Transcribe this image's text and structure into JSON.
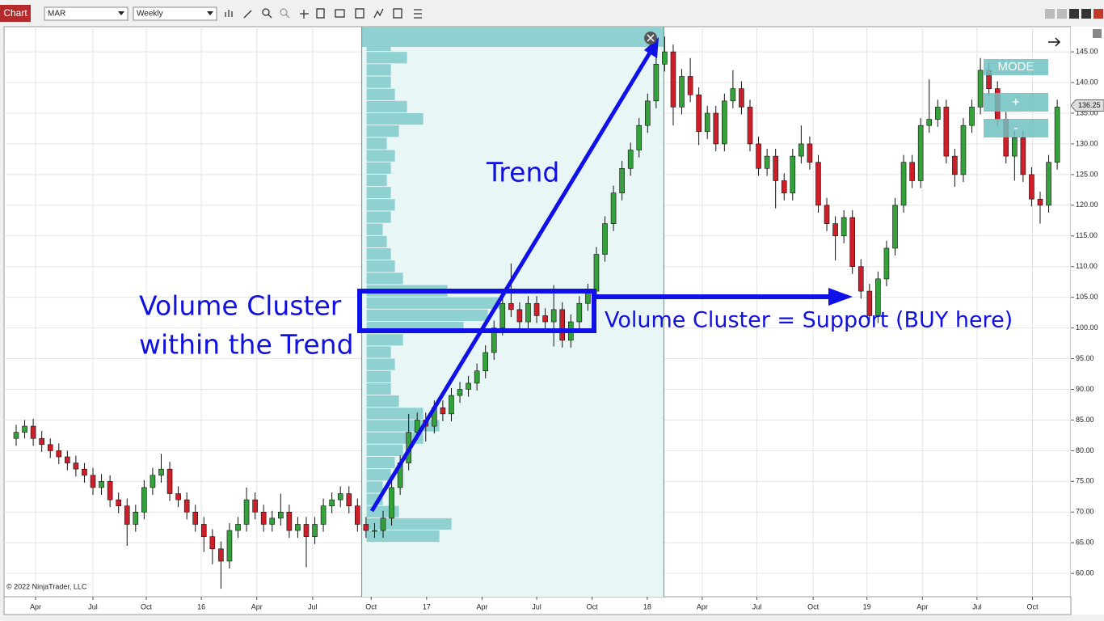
{
  "toolbar": {
    "tab": "Chart",
    "instrument": "MAR",
    "interval": "Weekly"
  },
  "mode_panel": {
    "mode": "MODE",
    "plus": "+",
    "minus": "-"
  },
  "chart_data": {
    "type": "candlestick",
    "up_color": "#34a13a",
    "down_color": "#cc1f2a",
    "xlim": [
      -1.42,
      123.6
    ],
    "xticks": [
      {
        "value": 2.27,
        "label": "Apr"
      },
      {
        "value": 9.0,
        "label": "Jul"
      },
      {
        "value": 15.25,
        "label": "Oct"
      },
      {
        "value": 21.7,
        "label": "16"
      },
      {
        "value": 28.2,
        "label": "Apr"
      },
      {
        "value": 34.75,
        "label": "Jul"
      },
      {
        "value": 41.6,
        "label": "Oct"
      },
      {
        "value": 48.1,
        "label": "17"
      },
      {
        "value": 54.6,
        "label": "Apr"
      },
      {
        "value": 61.0,
        "label": "Jul"
      },
      {
        "value": 67.5,
        "label": "Oct"
      },
      {
        "value": 73.96,
        "label": "18"
      },
      {
        "value": 80.4,
        "label": "Apr"
      },
      {
        "value": 86.8,
        "label": "Jul"
      },
      {
        "value": 93.4,
        "label": "Oct"
      },
      {
        "value": 99.7,
        "label": "19"
      },
      {
        "value": 106.2,
        "label": "Apr"
      },
      {
        "value": 112.6,
        "label": "Jul"
      },
      {
        "value": 119.1,
        "label": "Oct"
      }
    ],
    "ylim": [
      56.2,
      149.1
    ],
    "yticks": [
      {
        "value": 60,
        "label": "60.00"
      },
      {
        "value": 65,
        "label": "65.00"
      },
      {
        "value": 70,
        "label": "70.00"
      },
      {
        "value": 75,
        "label": "75.00"
      },
      {
        "value": 80,
        "label": "80.00"
      },
      {
        "value": 85,
        "label": "85.00"
      },
      {
        "value": 90,
        "label": "90.00"
      },
      {
        "value": 95,
        "label": "95.00"
      },
      {
        "value": 100,
        "label": "100.00"
      },
      {
        "value": 105,
        "label": "105.00"
      },
      {
        "value": 110,
        "label": "110.00"
      },
      {
        "value": 115,
        "label": "115.00"
      },
      {
        "value": 120,
        "label": "120.00"
      },
      {
        "value": 125,
        "label": "125.00"
      },
      {
        "value": 130,
        "label": "130.00"
      },
      {
        "value": 135,
        "label": "135.00"
      },
      {
        "value": 140,
        "label": "140.00"
      },
      {
        "value": 145,
        "label": "145.00"
      }
    ],
    "grid": true,
    "last_price": 136.25,
    "copyright": "© 2022 NinjaTrader, LLC",
    "annotations": {
      "trend": "Trend",
      "cluster": [
        "Volume Cluster",
        "within the Trend"
      ],
      "support": "Volume Cluster = Support (BUY here)"
    },
    "volume_profile": {
      "range": [
        40.5,
        75.9
      ],
      "color": "#8fd0d0",
      "price_levels": [
        66,
        68,
        70,
        72,
        74,
        76,
        78,
        80,
        82,
        84,
        86,
        88,
        90,
        92,
        94,
        96,
        98,
        100,
        102,
        104,
        106,
        108,
        110,
        112,
        114,
        116,
        118,
        120,
        122,
        124,
        126,
        128,
        130,
        132,
        134,
        136,
        138,
        140,
        142,
        144,
        146
      ],
      "values": [
        90,
        105,
        40,
        20,
        20,
        30,
        35,
        45,
        70,
        90,
        70,
        40,
        30,
        30,
        35,
        30,
        45,
        120,
        150,
        165,
        100,
        45,
        35,
        30,
        25,
        20,
        30,
        35,
        30,
        25,
        30,
        35,
        25,
        40,
        70,
        50,
        35,
        30,
        30,
        50,
        30
      ]
    },
    "ohlc": [
      [
        82,
        84.2,
        80.8,
        83
      ],
      [
        83,
        85,
        82,
        84
      ],
      [
        84,
        85.2,
        80.8,
        82
      ],
      [
        82,
        83.2,
        79.8,
        81
      ],
      [
        81,
        82,
        78.8,
        80
      ],
      [
        80,
        81.2,
        77.8,
        79
      ],
      [
        79,
        80,
        76.8,
        78
      ],
      [
        78,
        79.2,
        75.8,
        77
      ],
      [
        77,
        78,
        74.8,
        76
      ],
      [
        76,
        77.2,
        72.8,
        74
      ],
      [
        74,
        76.2,
        72.8,
        75
      ],
      [
        75,
        76,
        70.8,
        72
      ],
      [
        72,
        73.2,
        69.8,
        71
      ],
      [
        71,
        72.2,
        64.5,
        68
      ],
      [
        68,
        71.2,
        66.8,
        70
      ],
      [
        70,
        75.2,
        68.8,
        74
      ],
      [
        74,
        77.2,
        72.8,
        76
      ],
      [
        76,
        79.5,
        74.8,
        77
      ],
      [
        77,
        78.2,
        71.8,
        73
      ],
      [
        73,
        74.2,
        70.8,
        72
      ],
      [
        72,
        73.2,
        68.8,
        70
      ],
      [
        70,
        71.2,
        66.8,
        68
      ],
      [
        68,
        69.2,
        63.5,
        66
      ],
      [
        66,
        67.2,
        61.5,
        64
      ],
      [
        64,
        65.2,
        57.5,
        62
      ],
      [
        62,
        68.2,
        60.8,
        67
      ],
      [
        67,
        69.2,
        65.8,
        68
      ],
      [
        68,
        74,
        66.8,
        72
      ],
      [
        72,
        73.2,
        68.8,
        70
      ],
      [
        70,
        71.2,
        66.8,
        68
      ],
      [
        68,
        70.2,
        66.8,
        69
      ],
      [
        69,
        73,
        67.8,
        70
      ],
      [
        70,
        71.2,
        65.8,
        67
      ],
      [
        67,
        69.2,
        65.8,
        68
      ],
      [
        68,
        69.2,
        61,
        66
      ],
      [
        66,
        69.2,
        64.8,
        68
      ],
      [
        68,
        72.2,
        66.8,
        71
      ],
      [
        71,
        73.2,
        69.8,
        72
      ],
      [
        72,
        74.2,
        70.8,
        73
      ],
      [
        73,
        74.2,
        69.8,
        71
      ],
      [
        71,
        72.2,
        66.8,
        68
      ],
      [
        68,
        69.2,
        65.8,
        67
      ],
      [
        67,
        68.2,
        65.8,
        67
      ],
      [
        67,
        70.2,
        65.8,
        69
      ],
      [
        69,
        75.2,
        67.8,
        74
      ],
      [
        74,
        79.2,
        72.8,
        78
      ],
      [
        78,
        86,
        76.8,
        83
      ],
      [
        83,
        86.2,
        81.8,
        85
      ],
      [
        85,
        86.2,
        81.5,
        84
      ],
      [
        84,
        88.2,
        82.8,
        87
      ],
      [
        87,
        88.2,
        84.8,
        86
      ],
      [
        86,
        90.2,
        84.8,
        89
      ],
      [
        89,
        91.2,
        87.8,
        90
      ],
      [
        90,
        92.2,
        88.8,
        91
      ],
      [
        91,
        94.2,
        89.8,
        93
      ],
      [
        93,
        97.2,
        91.8,
        96
      ],
      [
        96,
        101.2,
        94.8,
        100
      ],
      [
        100,
        105.2,
        98.8,
        104
      ],
      [
        104,
        110.5,
        101.8,
        103
      ],
      [
        103,
        104.2,
        99.8,
        101
      ],
      [
        101,
        105.2,
        99.8,
        104
      ],
      [
        104,
        105.2,
        100.8,
        102
      ],
      [
        102,
        103.2,
        99.8,
        101
      ],
      [
        101,
        107,
        97,
        103
      ],
      [
        103,
        104.2,
        96.8,
        98
      ],
      [
        98,
        102.2,
        96.8,
        101
      ],
      [
        101,
        105.2,
        99.8,
        104
      ],
      [
        104,
        107.2,
        102.8,
        106
      ],
      [
        106,
        113.2,
        104.8,
        112
      ],
      [
        112,
        118.2,
        110.8,
        117
      ],
      [
        117,
        123.2,
        115.8,
        122
      ],
      [
        122,
        127.2,
        120.8,
        126
      ],
      [
        126,
        130.2,
        124.8,
        129
      ],
      [
        129,
        134.2,
        127.8,
        133
      ],
      [
        133,
        138.2,
        131.8,
        137
      ],
      [
        137,
        144.2,
        135.8,
        143
      ],
      [
        143,
        147.5,
        141.8,
        145
      ],
      [
        145,
        146.2,
        133,
        136
      ],
      [
        136,
        142.2,
        134.8,
        141
      ],
      [
        141,
        144,
        136.8,
        138
      ],
      [
        138,
        139.2,
        129.8,
        132
      ],
      [
        132,
        136.2,
        130.8,
        135
      ],
      [
        135,
        136.2,
        128.8,
        130
      ],
      [
        130,
        138.2,
        128.8,
        137
      ],
      [
        137,
        142,
        135.8,
        139
      ],
      [
        139,
        140.2,
        134.8,
        136
      ],
      [
        136,
        137.2,
        128.8,
        130
      ],
      [
        130,
        131.2,
        124.8,
        126
      ],
      [
        126,
        129.2,
        124.8,
        128
      ],
      [
        128,
        129.2,
        119.5,
        124
      ],
      [
        124,
        125.2,
        120.8,
        122
      ],
      [
        122,
        129.2,
        120.8,
        128
      ],
      [
        128,
        133,
        126.8,
        130
      ],
      [
        130,
        131.2,
        125.8,
        127
      ],
      [
        127,
        128.2,
        118.8,
        120
      ],
      [
        120,
        121.2,
        115.8,
        117
      ],
      [
        117,
        118.2,
        111,
        115
      ],
      [
        115,
        119.2,
        113.8,
        118
      ],
      [
        118,
        119.2,
        108.8,
        110
      ],
      [
        110,
        111.2,
        104.8,
        106
      ],
      [
        106,
        107.2,
        101,
        102
      ],
      [
        102,
        109.2,
        100.8,
        108
      ],
      [
        108,
        114.2,
        106.8,
        113
      ],
      [
        113,
        121.2,
        111.8,
        120
      ],
      [
        120,
        128.2,
        118.8,
        127
      ],
      [
        127,
        128.2,
        122.8,
        124
      ],
      [
        124,
        134.2,
        122.8,
        133
      ],
      [
        133,
        140.5,
        131.8,
        134
      ],
      [
        134,
        137.2,
        132.8,
        136
      ],
      [
        136,
        137.2,
        126.8,
        128
      ],
      [
        128,
        129.2,
        123,
        125
      ],
      [
        125,
        134.2,
        123.8,
        133
      ],
      [
        133,
        137.2,
        131.8,
        136
      ],
      [
        136,
        144,
        134.8,
        142
      ],
      [
        142,
        143.2,
        137.8,
        139
      ],
      [
        139,
        140.2,
        132.8,
        134
      ],
      [
        134,
        135.2,
        126.8,
        128
      ],
      [
        128,
        132.2,
        124,
        131
      ],
      [
        131,
        132.2,
        123.8,
        125
      ],
      [
        125,
        126.2,
        119.8,
        121
      ],
      [
        121,
        122.2,
        117,
        120
      ],
      [
        120,
        128.2,
        118.8,
        127
      ],
      [
        127,
        137.2,
        125.8,
        136
      ]
    ]
  }
}
